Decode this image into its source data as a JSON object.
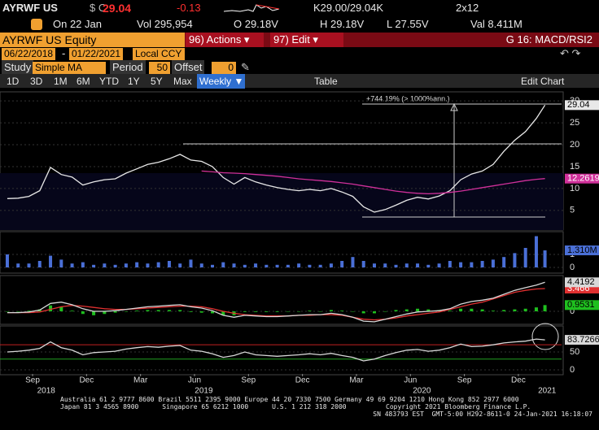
{
  "header": {
    "ticker": "AYRWF US",
    "currency": "$ C",
    "last": "29.04",
    "change": "-0.13",
    "bid_ask": "K29.00/29.04K",
    "size": "2x12",
    "date": "On 22 Jan",
    "volume": "Vol 295,954",
    "open": "O 29.18V",
    "high": "H 29.18V",
    "low": "L 27.55V",
    "value": "Val 8.411M"
  },
  "toolbar": {
    "security": "AYRWF US Equity",
    "actions": "96) Actions ▾",
    "edit": "97) Edit ▾",
    "function": "G 16: MACD/RSI2",
    "start_date": "06/22/2018",
    "end_date": "01/22/2021",
    "currency": "Local CCY",
    "study_label": "Study",
    "study": "Simple MA",
    "period_label": "Period",
    "period": "50",
    "offset_label": "Offset",
    "offset": "0",
    "ranges": [
      "1D",
      "3D",
      "1M",
      "6M",
      "YTD",
      "1Y",
      "5Y",
      "Max"
    ],
    "frequency": "Weekly ▼",
    "table": "Table",
    "edit_chart": "Edit Chart"
  },
  "chart_data": [
    {
      "type": "line",
      "annotation": "+744.19% (> 1000%ann.)",
      "x": [
        2018.55,
        2018.6,
        2018.65,
        2018.7,
        2018.75,
        2018.8,
        2018.85,
        2018.9,
        2018.95,
        2019.0,
        2019.05,
        2019.1,
        2019.15,
        2019.2,
        2019.25,
        2019.3,
        2019.35,
        2019.4,
        2019.45,
        2019.5,
        2019.55,
        2019.6,
        2019.65,
        2019.7,
        2019.75,
        2019.8,
        2019.85,
        2019.9,
        2019.95,
        2020.0,
        2020.05,
        2020.1,
        2020.15,
        2020.2,
        2020.25,
        2020.3,
        2020.35,
        2020.4,
        2020.45,
        2020.5,
        2020.55,
        2020.6,
        2020.65,
        2020.7,
        2020.75,
        2020.8,
        2020.85,
        2020.9,
        2020.95,
        2021.0,
        2021.04
      ],
      "xlim": [
        2018.535,
        2021.117
      ],
      "ylim": [
        0.7,
        31.7
      ],
      "yticks": [
        5,
        10,
        15,
        20,
        25,
        30
      ],
      "series": [
        {
          "color": "#e8e8e8",
          "values": [
            7.7,
            7.8,
            8.2,
            9.5,
            14.8,
            13.2,
            12.6,
            10.8,
            11.5,
            12.0,
            12.2,
            13.5,
            14.5,
            15.5,
            16.0,
            16.8,
            17.8,
            16.5,
            16.2,
            15.0,
            12.5,
            11.0,
            12.5,
            11.5,
            10.8,
            10.2,
            9.8,
            9.5,
            9.8,
            9.5,
            10.0,
            9.2,
            8.2,
            5.8,
            4.6,
            5.2,
            6.2,
            7.3,
            8.0,
            7.6,
            8.3,
            9.5,
            12.0,
            13.3,
            14.0,
            15.5,
            18.5,
            21.0,
            23.0,
            26.0,
            29.04
          ]
        },
        {
          "color": "#d0309a",
          "values": [
            null,
            null,
            null,
            null,
            null,
            null,
            null,
            null,
            null,
            null,
            null,
            null,
            null,
            null,
            null,
            null,
            null,
            null,
            14.0,
            13.8,
            13.6,
            13.5,
            13.4,
            13.2,
            13.0,
            12.8,
            12.5,
            12.2,
            12.0,
            11.8,
            11.6,
            11.3,
            11.0,
            10.6,
            10.2,
            9.8,
            9.4,
            9.1,
            8.9,
            8.8,
            8.9,
            9.1,
            9.4,
            9.8,
            10.2,
            10.6,
            11.0,
            11.4,
            11.8,
            12.1,
            12.2619
          ]
        }
      ]
    },
    {
      "type": "bar",
      "x": [
        2018.55,
        2018.6,
        2018.65,
        2018.7,
        2018.75,
        2018.8,
        2018.85,
        2018.9,
        2018.95,
        2019.0,
        2019.05,
        2019.1,
        2019.15,
        2019.2,
        2019.25,
        2019.3,
        2019.35,
        2019.4,
        2019.45,
        2019.5,
        2019.55,
        2019.6,
        2019.65,
        2019.7,
        2019.75,
        2019.8,
        2019.85,
        2019.9,
        2019.95,
        2020.0,
        2020.05,
        2020.1,
        2020.15,
        2020.2,
        2020.25,
        2020.3,
        2020.35,
        2020.4,
        2020.45,
        2020.5,
        2020.55,
        2020.6,
        2020.65,
        2020.7,
        2020.75,
        2020.8,
        2020.85,
        2020.9,
        2020.95,
        2021.0,
        2021.04
      ],
      "xlim": [
        2018.535,
        2021.117
      ],
      "ylim": [
        0,
        2.56
      ],
      "yticks": [
        0,
        1
      ],
      "series": [
        {
          "color": "#4a6fd6",
          "values": [
            1.0,
            0.3,
            0.3,
            0.5,
            0.9,
            0.6,
            0.3,
            0.4,
            0.2,
            0.3,
            0.2,
            0.3,
            0.4,
            0.3,
            0.4,
            0.5,
            0.3,
            0.6,
            0.3,
            0.2,
            0.4,
            0.3,
            0.2,
            0.3,
            0.2,
            0.2,
            0.2,
            0.3,
            0.2,
            0.2,
            0.3,
            0.5,
            0.8,
            0.5,
            0.3,
            0.3,
            0.2,
            0.3,
            0.3,
            0.2,
            0.3,
            0.5,
            0.4,
            0.4,
            0.5,
            0.6,
            0.8,
            1.1,
            1.5,
            2.4,
            1.31
          ],
          "value_labels": [
            null,
            null,
            null,
            null,
            null,
            null,
            null,
            null,
            null,
            null,
            null,
            null,
            null,
            null,
            null,
            null,
            null,
            null,
            null,
            null,
            null,
            null,
            null,
            null,
            null,
            null,
            null,
            null,
            null,
            null,
            null,
            null,
            null,
            null,
            null,
            null,
            null,
            null,
            null,
            null,
            null,
            null,
            null,
            null,
            null,
            null,
            null,
            null,
            null,
            null,
            "1.310M"
          ]
        }
      ]
    },
    {
      "type": "line",
      "x": [
        2018.55,
        2018.6,
        2018.65,
        2018.7,
        2018.75,
        2018.8,
        2018.85,
        2018.9,
        2018.95,
        2019.0,
        2019.05,
        2019.1,
        2019.15,
        2019.2,
        2019.25,
        2019.3,
        2019.35,
        2019.4,
        2019.45,
        2019.5,
        2019.55,
        2019.6,
        2019.65,
        2019.7,
        2019.75,
        2019.8,
        2019.85,
        2019.9,
        2019.95,
        2020.0,
        2020.05,
        2020.1,
        2020.15,
        2020.2,
        2020.25,
        2020.3,
        2020.35,
        2020.4,
        2020.45,
        2020.5,
        2020.55,
        2020.6,
        2020.65,
        2020.7,
        2020.75,
        2020.8,
        2020.85,
        2020.9,
        2020.95,
        2021.0,
        2021.04
      ],
      "xlim": [
        2018.535,
        2021.117
      ],
      "ylim": [
        -1.73,
        5.2
      ],
      "yticks": [
        0
      ],
      "series": [
        {
          "type": "bar",
          "color": "#1fbf1f",
          "values": [
            0,
            0,
            0.1,
            0.3,
            0.9,
            0.7,
            0.1,
            -0.4,
            -0.6,
            -0.4,
            -0.2,
            0,
            0.1,
            0.2,
            0.2,
            0.2,
            0.2,
            -0.1,
            -0.2,
            -0.3,
            -0.6,
            -0.6,
            -0.1,
            -0.1,
            -0.1,
            -0.1,
            0,
            0,
            0.1,
            0,
            0.2,
            0.1,
            0,
            -0.3,
            -0.3,
            0,
            0.2,
            0.3,
            0.4,
            0.3,
            0.2,
            0.1,
            0.4,
            0.4,
            0.3,
            0.1,
            0.2,
            0.3,
            0.4,
            0.6,
            0.9531
          ]
        },
        {
          "color": "#e03030",
          "values": [
            -0.2,
            -0.2,
            -0.2,
            -0.1,
            0.3,
            0.7,
            0.9,
            0.8,
            0.6,
            0.4,
            0.3,
            0.3,
            0.4,
            0.5,
            0.6,
            0.7,
            0.8,
            0.8,
            0.7,
            0.4,
            0.0,
            -0.3,
            -0.5,
            -0.6,
            -0.7,
            -0.7,
            -0.7,
            -0.6,
            -0.6,
            -0.5,
            -0.5,
            -0.6,
            -0.9,
            -1.2,
            -1.3,
            -1.2,
            -1.0,
            -0.7,
            -0.5,
            -0.3,
            -0.1,
            0.3,
            0.7,
            1.1,
            1.4,
            1.9,
            2.4,
            2.9,
            3.2,
            3.4,
            3.466
          ]
        },
        {
          "color": "#d8d8d8",
          "values": [
            -0.2,
            -0.2,
            -0.1,
            0.2,
            1.2,
            1.4,
            1.0,
            0.4,
            0.0,
            0.0,
            0.1,
            0.3,
            0.5,
            0.7,
            0.8,
            0.9,
            1.0,
            0.7,
            0.5,
            0.1,
            -0.6,
            -0.9,
            -0.6,
            -0.7,
            -0.8,
            -0.8,
            -0.7,
            -0.6,
            -0.5,
            -0.5,
            -0.3,
            -0.5,
            -0.9,
            -1.5,
            -1.6,
            -1.2,
            -0.8,
            -0.4,
            -0.1,
            0.0,
            0.1,
            0.4,
            1.1,
            1.5,
            1.7,
            2.0,
            2.6,
            3.2,
            3.6,
            4.0,
            4.4192
          ]
        }
      ]
    },
    {
      "type": "line",
      "x": [
        2018.55,
        2018.6,
        2018.65,
        2018.7,
        2018.75,
        2018.8,
        2018.85,
        2018.9,
        2018.95,
        2019.0,
        2019.05,
        2019.1,
        2019.15,
        2019.2,
        2019.25,
        2019.3,
        2019.35,
        2019.4,
        2019.45,
        2019.5,
        2019.55,
        2019.6,
        2019.65,
        2019.7,
        2019.75,
        2019.8,
        2019.85,
        2019.9,
        2019.95,
        2020.0,
        2020.05,
        2020.1,
        2020.15,
        2020.2,
        2020.25,
        2020.3,
        2020.35,
        2020.4,
        2020.45,
        2020.5,
        2020.55,
        2020.6,
        2020.65,
        2020.7,
        2020.75,
        2020.8,
        2020.85,
        2020.9,
        2020.95,
        2021.0,
        2021.04
      ],
      "xlim": [
        2018.535,
        2021.117
      ],
      "ylim": [
        0,
        118
      ],
      "yticks": [
        0,
        50
      ],
      "levels": [
        {
          "value": 70,
          "color": "#c02020"
        },
        {
          "value": 30,
          "color": "#20a020"
        }
      ],
      "xticks": [
        {
          "value": 2018.667,
          "label": "Sep"
        },
        {
          "value": 2018.917,
          "label": "Dec"
        },
        {
          "value": 2019.167,
          "label": "Mar"
        },
        {
          "value": 2019.417,
          "label": "Jun"
        },
        {
          "value": 2019.667,
          "label": "Sep"
        },
        {
          "value": 2019.917,
          "label": "Dec"
        },
        {
          "value": 2020.167,
          "label": "Mar"
        },
        {
          "value": 2020.417,
          "label": "Jun"
        },
        {
          "value": 2020.667,
          "label": "Sep"
        },
        {
          "value": 2020.917,
          "label": "Dec"
        }
      ],
      "year_ticks": [
        {
          "value": 2018.73,
          "label": "2018"
        },
        {
          "value": 2019.46,
          "label": "2019"
        },
        {
          "value": 2020.47,
          "label": "2020"
        },
        {
          "value": 2021.05,
          "label": "2021"
        }
      ],
      "series": [
        {
          "color": "#d8d8d8",
          "values": [
            50,
            52,
            55,
            60,
            78,
            62,
            55,
            42,
            48,
            50,
            52,
            58,
            62,
            65,
            63,
            66,
            68,
            55,
            52,
            45,
            35,
            40,
            50,
            42,
            40,
            38,
            40,
            42,
            45,
            42,
            46,
            40,
            35,
            25,
            30,
            40,
            48,
            55,
            57,
            52,
            55,
            62,
            72,
            65,
            66,
            70,
            75,
            78,
            80,
            86,
            83.7266
          ]
        }
      ]
    }
  ],
  "footer": {
    "line1": "Australia 61 2 9777 8600 Brazil 5511 2395 9000 Europe 44 20 7330 7500 Germany 49 69 9204 1210 Hong Kong 852 2977 6000",
    "line2a": "Japan 81 3 4565 8900      Singapore 65 6212 1000      U.S. 1 212 318 2000",
    "line2b": "Copyright 2021 Bloomberg Finance L.P.",
    "line3": "SN 483793 EST  GMT-5:00 H292-8611-0 24-Jan-2021 16:18:07"
  }
}
